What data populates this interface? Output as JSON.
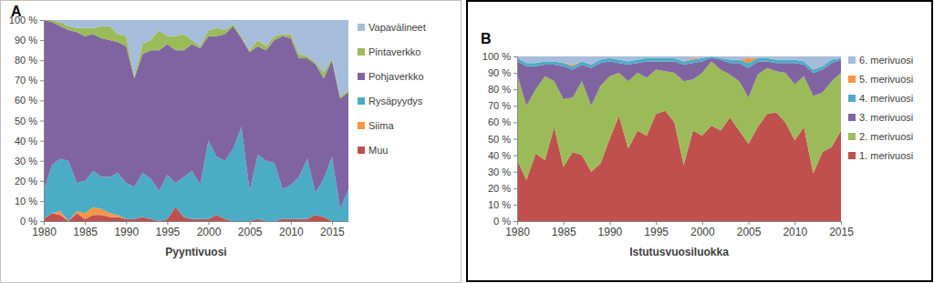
{
  "chart_data": [
    {
      "type": "area",
      "stacked": true,
      "grid": false,
      "legend": "right",
      "title": "A",
      "x_label": "Pyyntivuosi",
      "x": [
        1980,
        1981,
        1982,
        1983,
        1984,
        1985,
        1986,
        1987,
        1988,
        1989,
        1990,
        1991,
        1992,
        1993,
        1994,
        1995,
        1996,
        1997,
        1998,
        1999,
        2000,
        2001,
        2002,
        2003,
        2004,
        2005,
        2006,
        2007,
        2008,
        2009,
        2010,
        2011,
        2012,
        2013,
        2014,
        2015,
        2016,
        2017
      ],
      "xlim": [
        1980,
        2017
      ],
      "xticks": [
        1980,
        1985,
        1990,
        1995,
        2000,
        2005,
        2010,
        2015
      ],
      "ylim": [
        0,
        100
      ],
      "yticks": [
        {
          "value": 0,
          "label": "0 %"
        },
        {
          "value": 10,
          "label": "10 %"
        },
        {
          "value": 20,
          "label": "20 %"
        },
        {
          "value": 30,
          "label": "30 %"
        },
        {
          "value": 40,
          "label": "40 %"
        },
        {
          "value": 50,
          "label": "50 %"
        },
        {
          "value": 60,
          "label": "60 %"
        },
        {
          "value": 70,
          "label": "70 %"
        },
        {
          "value": 80,
          "label": "80 %"
        },
        {
          "value": 90,
          "label": "90 %"
        },
        {
          "value": 100,
          "label": "100 %"
        }
      ],
      "series": [
        {
          "name": "Muu",
          "color": "#c0504d",
          "values": [
            1,
            4,
            3,
            0,
            4,
            1,
            3,
            3,
            2,
            2,
            1,
            1,
            2,
            1,
            0,
            1,
            7,
            2,
            1,
            1,
            1,
            3,
            1,
            0,
            0,
            0,
            1,
            0,
            0,
            1,
            1,
            1,
            1,
            3,
            2,
            0,
            0,
            0
          ]
        },
        {
          "name": "Siima",
          "color": "#f79646",
          "values": [
            0,
            0,
            2,
            0,
            1,
            3,
            4,
            3,
            2,
            1,
            0,
            0,
            0,
            0,
            0,
            0,
            0,
            0,
            0,
            0,
            0,
            0,
            0,
            0,
            0,
            0,
            0,
            0,
            0,
            0,
            0,
            0,
            0,
            0,
            0,
            0,
            0,
            0
          ]
        },
        {
          "name": "Rysäpyydys",
          "color": "#4bacc6",
          "values": [
            14,
            24,
            26,
            30,
            14,
            16,
            18,
            16,
            18,
            21,
            18,
            16,
            22,
            20,
            15,
            22,
            12,
            20,
            24,
            17,
            39,
            29,
            29,
            36,
            47,
            15,
            32,
            30,
            29,
            15,
            17,
            21,
            30,
            11,
            19,
            32,
            6,
            16
          ]
        },
        {
          "name": "Pohjaverkko",
          "color": "#8064a2",
          "values": [
            85,
            71,
            66,
            65,
            75,
            72,
            68,
            69,
            68,
            65,
            68,
            54,
            59,
            64,
            70,
            65,
            66,
            63,
            63,
            68,
            52,
            60,
            63,
            61,
            44,
            69,
            54,
            55,
            61,
            76,
            73,
            59,
            50,
            64,
            50,
            48,
            55,
            48
          ]
        },
        {
          "name": "Pintaverkko",
          "color": "#9bbb59",
          "values": [
            0,
            1,
            2,
            2,
            2,
            4,
            3,
            6,
            7,
            4,
            5,
            1,
            5,
            5,
            10,
            4,
            7,
            8,
            2,
            1,
            3,
            4,
            2,
            1,
            1,
            1,
            3,
            2,
            2,
            1,
            2,
            2,
            1,
            1,
            3,
            1,
            1,
            1
          ]
        },
        {
          "name": "Vapavälineet",
          "color": "#a6bcdb",
          "values": [
            0,
            0,
            1,
            3,
            4,
            4,
            4,
            3,
            3,
            7,
            8,
            28,
            12,
            10,
            5,
            8,
            8,
            7,
            10,
            13,
            5,
            4,
            5,
            2,
            8,
            15,
            10,
            13,
            8,
            7,
            7,
            17,
            18,
            21,
            26,
            19,
            38,
            35
          ]
        }
      ]
    },
    {
      "type": "area",
      "stacked": true,
      "grid": false,
      "legend": "right",
      "title": "B",
      "x_label": "Istutusvuosiluokka",
      "x": [
        1980,
        1981,
        1982,
        1983,
        1984,
        1985,
        1986,
        1987,
        1988,
        1989,
        1990,
        1991,
        1992,
        1993,
        1994,
        1995,
        1996,
        1997,
        1998,
        1999,
        2000,
        2001,
        2002,
        2003,
        2004,
        2005,
        2006,
        2007,
        2008,
        2009,
        2010,
        2011,
        2012,
        2013,
        2014,
        2015
      ],
      "xlim": [
        1980,
        2015
      ],
      "xticks": [
        1980,
        1985,
        1990,
        1995,
        2000,
        2005,
        2010,
        2015
      ],
      "ylim": [
        0,
        100
      ],
      "yticks": [
        {
          "value": 0,
          "label": "0 %"
        },
        {
          "value": 10,
          "label": "10 %"
        },
        {
          "value": 20,
          "label": "20 %"
        },
        {
          "value": 30,
          "label": "30 %"
        },
        {
          "value": 40,
          "label": "40 %"
        },
        {
          "value": 50,
          "label": "50 %"
        },
        {
          "value": 60,
          "label": "60 %"
        },
        {
          "value": 70,
          "label": "70 %"
        },
        {
          "value": 80,
          "label": "80 %"
        },
        {
          "value": 90,
          "label": "90 %"
        },
        {
          "value": 100,
          "label": "100 %"
        }
      ],
      "series": [
        {
          "name": "1. merivuosi",
          "color": "#c0504d",
          "values": [
            37,
            25,
            41,
            37,
            57,
            33,
            42,
            40,
            30,
            35,
            50,
            64,
            44,
            55,
            52,
            65,
            67,
            60,
            34,
            55,
            52,
            58,
            55,
            63,
            55,
            47,
            57,
            65,
            66,
            60,
            49,
            57,
            29,
            42,
            45,
            55
          ]
        },
        {
          "name": "2. merivuosi",
          "color": "#9bbb59",
          "values": [
            52,
            45,
            39,
            51,
            28,
            41,
            33,
            45,
            40,
            47,
            38,
            26,
            41,
            35,
            35,
            27,
            24,
            30,
            51,
            31,
            38,
            39,
            37,
            26,
            30,
            28,
            32,
            28,
            25,
            30,
            34,
            31,
            47,
            36,
            40,
            35
          ]
        },
        {
          "name": "3. merivuosi",
          "color": "#8064a2",
          "values": [
            8,
            24,
            14,
            7,
            10,
            20,
            17,
            10,
            23,
            14,
            9,
            6,
            10,
            6,
            10,
            5,
            6,
            7,
            10,
            10,
            7,
            2,
            6,
            7,
            11,
            18,
            8,
            4,
            5,
            6,
            13,
            7,
            14,
            14,
            11,
            8
          ]
        },
        {
          "name": "4. merivuosi",
          "color": "#4bacc6",
          "values": [
            2,
            2,
            2,
            2,
            2,
            2,
            2,
            2,
            2,
            2,
            2,
            2,
            2,
            2,
            2,
            2,
            2,
            2,
            2,
            2,
            2,
            1,
            1,
            2,
            2,
            3,
            2,
            2,
            2,
            2,
            2,
            2,
            2,
            2,
            2,
            1
          ]
        },
        {
          "name": "5. merivuosi",
          "color": "#f79646",
          "values": [
            0,
            0,
            0,
            0,
            0,
            0,
            1,
            0,
            0,
            0,
            0,
            0,
            0,
            0,
            0,
            0,
            0,
            0,
            0,
            1,
            0,
            0,
            0,
            0,
            0,
            3,
            0,
            0,
            0,
            0,
            0,
            0,
            0,
            0,
            0,
            0
          ]
        },
        {
          "name": "6. merivuosi",
          "color": "#a6bcdb",
          "values": [
            1,
            4,
            4,
            3,
            3,
            4,
            5,
            3,
            5,
            2,
            1,
            2,
            3,
            2,
            1,
            1,
            1,
            1,
            3,
            1,
            1,
            0,
            1,
            2,
            2,
            1,
            1,
            1,
            2,
            2,
            2,
            3,
            8,
            6,
            2,
            1
          ]
        }
      ]
    }
  ]
}
